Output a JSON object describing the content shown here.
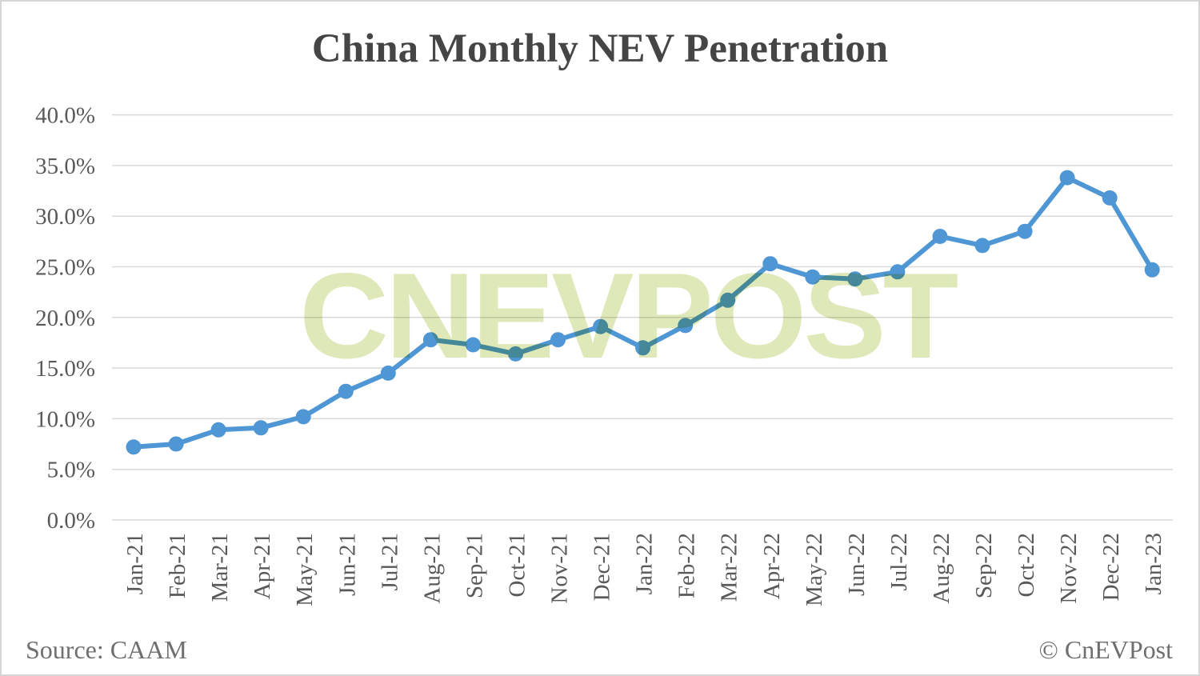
{
  "watermark": {
    "text": "CNEVPOST"
  },
  "footer": {
    "source": "Source: CAAM",
    "copyright": "© CnEVPost"
  },
  "colors": {
    "line": "#4f96d5",
    "marker": "#4f96d5",
    "grid": "#d9d9d9",
    "title_text": "#454545",
    "axis_text": "#595959",
    "footer_text": "#6f6f6f",
    "watermark": "#d6e3a6"
  },
  "chart_data": {
    "type": "line",
    "title": "China Monthly NEV Penetration",
    "categories": [
      "Jan-21",
      "Feb-21",
      "Mar-21",
      "Apr-21",
      "May-21",
      "Jun-21",
      "Jul-21",
      "Aug-21",
      "Sep-21",
      "Oct-21",
      "Nov-21",
      "Dec-21",
      "Jan-22",
      "Feb-22",
      "Mar-22",
      "Apr-22",
      "May-22",
      "Jun-22",
      "Jul-22",
      "Aug-22",
      "Sep-22",
      "Oct-22",
      "Nov-22",
      "Dec-22",
      "Jan-23"
    ],
    "series": [
      {
        "name": "NEV penetration",
        "values": [
          7.2,
          7.5,
          8.9,
          9.1,
          10.2,
          12.7,
          14.5,
          17.8,
          17.3,
          16.4,
          17.8,
          19.1,
          17.0,
          19.2,
          21.7,
          25.3,
          24.0,
          23.8,
          24.5,
          28.0,
          27.1,
          28.5,
          33.8,
          31.8,
          24.7
        ]
      }
    ],
    "ytick_labels": [
      "0.0%",
      "5.0%",
      "10.0%",
      "15.0%",
      "20.0%",
      "25.0%",
      "30.0%",
      "35.0%",
      "40.0%"
    ],
    "ylim": [
      0,
      40
    ],
    "ytick_step": 5,
    "xlabel": "",
    "ylabel": "",
    "grid": true,
    "legend": false,
    "marker": "circle"
  }
}
